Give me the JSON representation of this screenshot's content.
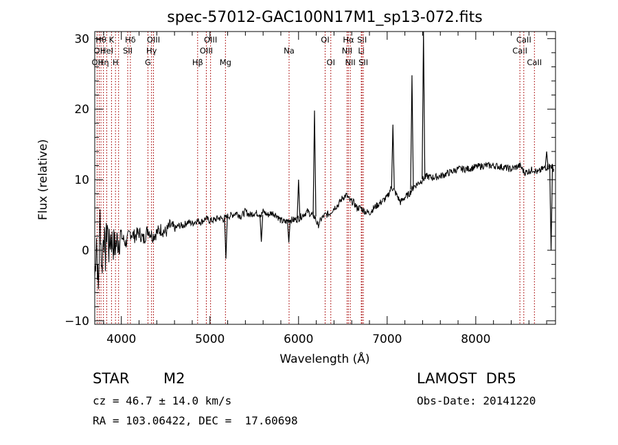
{
  "chart_data": {
    "type": "line",
    "title": "spec-57012-GAC100N17M1_sp13-072.fits",
    "xlabel": "Wavelength (Å)",
    "ylabel": "Flux (relative)",
    "xlim": [
      3700,
      8900
    ],
    "ylim": [
      -10.5,
      31
    ],
    "xticks": [
      4000,
      5000,
      6000,
      7000,
      8000
    ],
    "yticks": [
      -10,
      0,
      10,
      20,
      30
    ],
    "grid": false,
    "series": [
      {
        "x": [
          3700,
          3720,
          3740,
          3760,
          3780,
          3800,
          3820,
          3840,
          3860,
          3880,
          3900,
          3930,
          3960,
          4000,
          4050,
          4100,
          4150,
          4200,
          4250,
          4300,
          4350,
          4400,
          4450,
          4500,
          4550,
          4600,
          4650,
          4700,
          4750,
          4800,
          4850,
          4900,
          4950,
          5000,
          5050,
          5100,
          5150,
          5200,
          5250,
          5300,
          5350,
          5400,
          5450,
          5500,
          5550,
          5580,
          5600,
          5650,
          5700,
          5750,
          5800,
          5850,
          5890,
          5950,
          6000,
          6050,
          6100,
          6150,
          6180,
          6220,
          6260,
          6300,
          6350,
          6400,
          6450,
          6500,
          6540,
          6580,
          6620,
          6660,
          6700,
          6750,
          6800,
          6850,
          6900,
          6950,
          7000,
          7050,
          7100,
          7150,
          7200,
          7250,
          7300,
          7350,
          7400,
          7450,
          7500,
          7600,
          7700,
          7800,
          7900,
          8000,
          8100,
          8200,
          8300,
          8400,
          8500,
          8550,
          8600,
          8650,
          8700,
          8750,
          8800,
          8850,
          8880
        ],
        "y": [
          -4,
          2,
          -6,
          5,
          -3,
          3,
          -1,
          4,
          0,
          2,
          1,
          0.5,
          1.5,
          2,
          1,
          2.5,
          2,
          2.5,
          1.5,
          3,
          2,
          2.5,
          3,
          2.5,
          3.5,
          3,
          3.5,
          3.5,
          4,
          3.8,
          4.2,
          4,
          4.5,
          4.2,
          4.3,
          4.6,
          4.4,
          4.8,
          5,
          5.3,
          4.8,
          5.5,
          5,
          5.3,
          5.2,
          5,
          5.5,
          5,
          5.3,
          5,
          4.2,
          4,
          4.3,
          4.3,
          4.5,
          5,
          5.5,
          5,
          4.8,
          3.5,
          4.5,
          5,
          5.2,
          6,
          6.5,
          7.5,
          7.8,
          7,
          6.8,
          6,
          6,
          5.5,
          5.3,
          6,
          6.5,
          7,
          7.5,
          9,
          8,
          6.8,
          7.5,
          8,
          9,
          9.5,
          10,
          10.5,
          10.3,
          10.5,
          11,
          11.5,
          11.5,
          11.8,
          12,
          12,
          11.8,
          11.5,
          12,
          11,
          11.2,
          11.5,
          11,
          11.5,
          11.8,
          12,
          11.5
        ],
        "peaks": [
          {
            "x": 5580,
            "y": 1.2
          },
          {
            "x": 5890,
            "y": 1.1
          },
          {
            "x": 5180,
            "y": -1.2
          },
          {
            "x": 6000,
            "y": 10.0
          },
          {
            "x": 6180,
            "y": 19.8
          },
          {
            "x": 7065,
            "y": 17.8
          },
          {
            "x": 7280,
            "y": 24.8
          },
          {
            "x": 7410,
            "y": 31
          },
          {
            "x": 8800,
            "y": 14
          },
          {
            "x": 8850,
            "y": 0
          }
        ]
      }
    ],
    "line_markers": [
      {
        "wl": 3727,
        "labels": [
          "OII"
        ],
        "row": 3
      },
      {
        "wl": 3750,
        "labels": [
          "OII"
        ],
        "row": 2
      },
      {
        "wl": 3770,
        "labels": [
          "Hθ"
        ],
        "row": 1
      },
      {
        "wl": 3798,
        "labels": [
          "Hη"
        ],
        "row": 3
      },
      {
        "wl": 3835,
        "labels": [
          "HeI"
        ],
        "row": 2
      },
      {
        "wl": 3889,
        "labels": [
          "K"
        ],
        "row": 1
      },
      {
        "wl": 3934,
        "labels": [
          "H"
        ],
        "row": 3
      },
      {
        "wl": 3969,
        "labels": [],
        "row": 0
      },
      {
        "wl": 4072,
        "labels": [
          "SII"
        ],
        "row": 2
      },
      {
        "wl": 4102,
        "labels": [
          "Hδ"
        ],
        "row": 1
      },
      {
        "wl": 4300,
        "labels": [
          "G"
        ],
        "row": 3
      },
      {
        "wl": 4341,
        "labels": [
          "Hγ"
        ],
        "row": 2
      },
      {
        "wl": 4363,
        "labels": [
          "OIII"
        ],
        "row": 1
      },
      {
        "wl": 4861,
        "labels": [
          "Hβ"
        ],
        "row": 3
      },
      {
        "wl": 4959,
        "labels": [
          "OIII"
        ],
        "row": 2
      },
      {
        "wl": 5007,
        "labels": [
          "OIII"
        ],
        "row": 1
      },
      {
        "wl": 5175,
        "labels": [
          "Mg"
        ],
        "row": 3
      },
      {
        "wl": 5893,
        "labels": [
          "Na"
        ],
        "row": 2
      },
      {
        "wl": 6300,
        "labels": [
          "OI"
        ],
        "row": 1
      },
      {
        "wl": 6364,
        "labels": [
          "OI"
        ],
        "row": 3
      },
      {
        "wl": 6548,
        "labels": [
          "NII"
        ],
        "row": 2
      },
      {
        "wl": 6563,
        "labels": [
          "Hα"
        ],
        "row": 1
      },
      {
        "wl": 6584,
        "labels": [
          "NII"
        ],
        "row": 3
      },
      {
        "wl": 6708,
        "labels": [
          "Li"
        ],
        "row": 2
      },
      {
        "wl": 6716,
        "labels": [
          "SII"
        ],
        "row": 1
      },
      {
        "wl": 6731,
        "labels": [
          "SII"
        ],
        "row": 3
      },
      {
        "wl": 8498,
        "labels": [
          "CaII"
        ],
        "row": 2
      },
      {
        "wl": 8542,
        "labels": [
          "CaII"
        ],
        "row": 1
      },
      {
        "wl": 8662,
        "labels": [
          "CaII"
        ],
        "row": 3
      }
    ],
    "colors": {
      "spectrum": "#000000",
      "markers": "#b22222",
      "axes": "#000000"
    }
  },
  "footer": {
    "object_type": "STAR",
    "subclass": "M2",
    "survey": "LAMOST  DR5",
    "redshift": "cz = 46.7 ± 14.0 km/s",
    "obs_date": "Obs-Date: 20141220",
    "coords": "RA = 103.06422, DEC =  17.60698"
  }
}
